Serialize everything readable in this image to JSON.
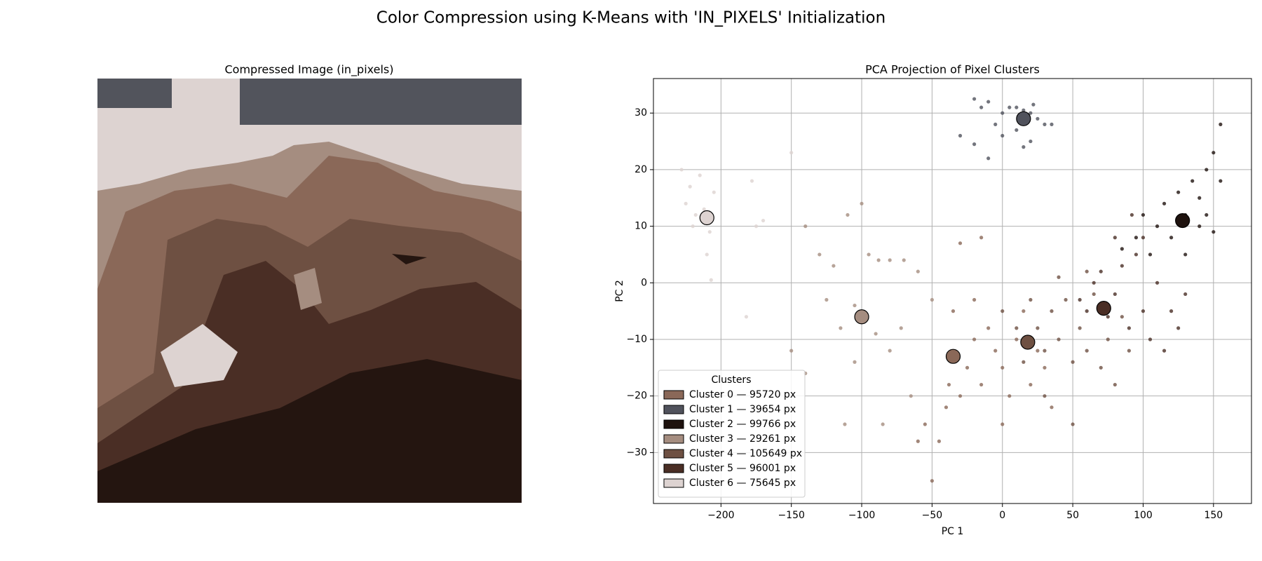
{
  "title": "Color Compression using K-Means with 'IN_PIXELS' Initialization",
  "image_panel": {
    "title": "Compressed Image (in_pixels)"
  },
  "chart_data": {
    "type": "scatter",
    "title": "PCA Projection of Pixel Clusters",
    "x_label": "PC 1",
    "y_label": "PC 2",
    "xlim": [
      -248,
      177
    ],
    "ylim": [
      -39,
      36.1
    ],
    "xticks": [
      {
        "value": -200,
        "label": "−200"
      },
      {
        "value": -150,
        "label": "−150"
      },
      {
        "value": -100,
        "label": "−100"
      },
      {
        "value": -50,
        "label": "−50"
      },
      0,
      50,
      100,
      150
    ],
    "yticks": [
      {
        "value": -30,
        "label": "−30"
      },
      {
        "value": -20,
        "label": "−20"
      },
      {
        "value": -10,
        "label": "−10"
      },
      0,
      10,
      20,
      30
    ],
    "grid": true,
    "legend_title": "Clusters",
    "legend_position": "lower left",
    "series": [
      {
        "name": "Cluster 0 — 95720 px",
        "color": "#8a6858",
        "centroid": [
          -35,
          -13
        ],
        "x": [
          -50,
          -45,
          -40,
          -38,
          -30,
          -25,
          -20,
          -15,
          -10,
          -5,
          0,
          5,
          10,
          15,
          20,
          25,
          30,
          -55,
          -60,
          -35,
          -20,
          -15,
          -30,
          0,
          35
        ],
        "y": [
          -35,
          -28,
          -22,
          -18,
          -20,
          -15,
          -10,
          -18,
          -8,
          -12,
          -15,
          -20,
          -10,
          -5,
          -18,
          -12,
          -15,
          -25,
          -28,
          -5,
          -3,
          8,
          7,
          -25,
          -22
        ]
      },
      {
        "name": "Cluster 1 — 39654 px",
        "color": "#50525c",
        "centroid": [
          15,
          29
        ],
        "x": [
          -20,
          -15,
          -10,
          0,
          5,
          10,
          15,
          20,
          25,
          30,
          35,
          10,
          20,
          -30,
          -20,
          0,
          -5,
          15,
          -10,
          22
        ],
        "y": [
          32.5,
          31,
          32,
          30,
          31,
          31,
          30.5,
          30,
          29,
          28,
          28,
          27,
          25,
          26,
          24.5,
          26,
          28,
          24,
          22,
          31.5
        ]
      },
      {
        "name": "Cluster 2 — 99766 px",
        "color": "#1e120e",
        "centroid": [
          128,
          11
        ],
        "x": [
          85,
          95,
          100,
          105,
          110,
          115,
          120,
          125,
          130,
          135,
          140,
          145,
          150,
          155,
          155,
          140,
          130,
          145,
          150
        ],
        "y": [
          6,
          8,
          12,
          5,
          10,
          14,
          8,
          16,
          12,
          18,
          15,
          20,
          23,
          28,
          18,
          10,
          5,
          12,
          9
        ]
      },
      {
        "name": "Cluster 3 — 29261 px",
        "color": "#a58d80",
        "centroid": [
          -100,
          -6
        ],
        "x": [
          -140,
          -130,
          -120,
          -110,
          -100,
          -95,
          -88,
          -80,
          -70,
          -125,
          -115,
          -105,
          -90,
          -80,
          -72,
          -150,
          -140,
          -112,
          -85,
          -65,
          -105,
          -60,
          -50
        ],
        "y": [
          10,
          5,
          3,
          12,
          14,
          5,
          4,
          4,
          4,
          -3,
          -8,
          -4,
          -9,
          -12,
          -8,
          -12,
          -16,
          -25,
          -25,
          -20,
          -14,
          2,
          -3
        ]
      },
      {
        "name": "Cluster 4 — 105649 px",
        "color": "#6e5042",
        "centroid": [
          18,
          -10.5
        ],
        "x": [
          0,
          10,
          20,
          25,
          30,
          35,
          40,
          45,
          50,
          55,
          60,
          65,
          70,
          75,
          80,
          85,
          50,
          40,
          60,
          30,
          90,
          15
        ],
        "y": [
          -5,
          -8,
          -3,
          -8,
          -12,
          -5,
          -10,
          -3,
          -14,
          -8,
          -12,
          -2,
          -15,
          -10,
          -18,
          -6,
          -25,
          1,
          2,
          -20,
          -12,
          -14
        ]
      },
      {
        "name": "Cluster 5 — 96001 px",
        "color": "#4a2e25",
        "centroid": [
          72,
          -4.5
        ],
        "x": [
          55,
          60,
          65,
          70,
          75,
          80,
          85,
          90,
          95,
          100,
          105,
          110,
          115,
          120,
          125,
          130,
          100,
          92,
          80
        ],
        "y": [
          -3,
          -5,
          0,
          2,
          -6,
          -2,
          3,
          -8,
          5,
          -5,
          -10,
          0,
          -12,
          -5,
          -8,
          -2,
          8,
          12,
          8
        ]
      },
      {
        "name": "Cluster 6 — 75645 px",
        "color": "#ddd3d1",
        "centroid": [
          -210,
          11.5
        ],
        "x": [
          -228,
          -222,
          -215,
          -225,
          -218,
          -212,
          -208,
          -220,
          -205,
          -210,
          -207,
          -178,
          -170,
          -150,
          -175,
          -182
        ],
        "y": [
          20,
          17,
          19,
          14,
          12,
          13,
          9,
          10,
          16,
          5,
          0.5,
          18,
          11,
          23,
          10,
          -6
        ]
      }
    ]
  }
}
